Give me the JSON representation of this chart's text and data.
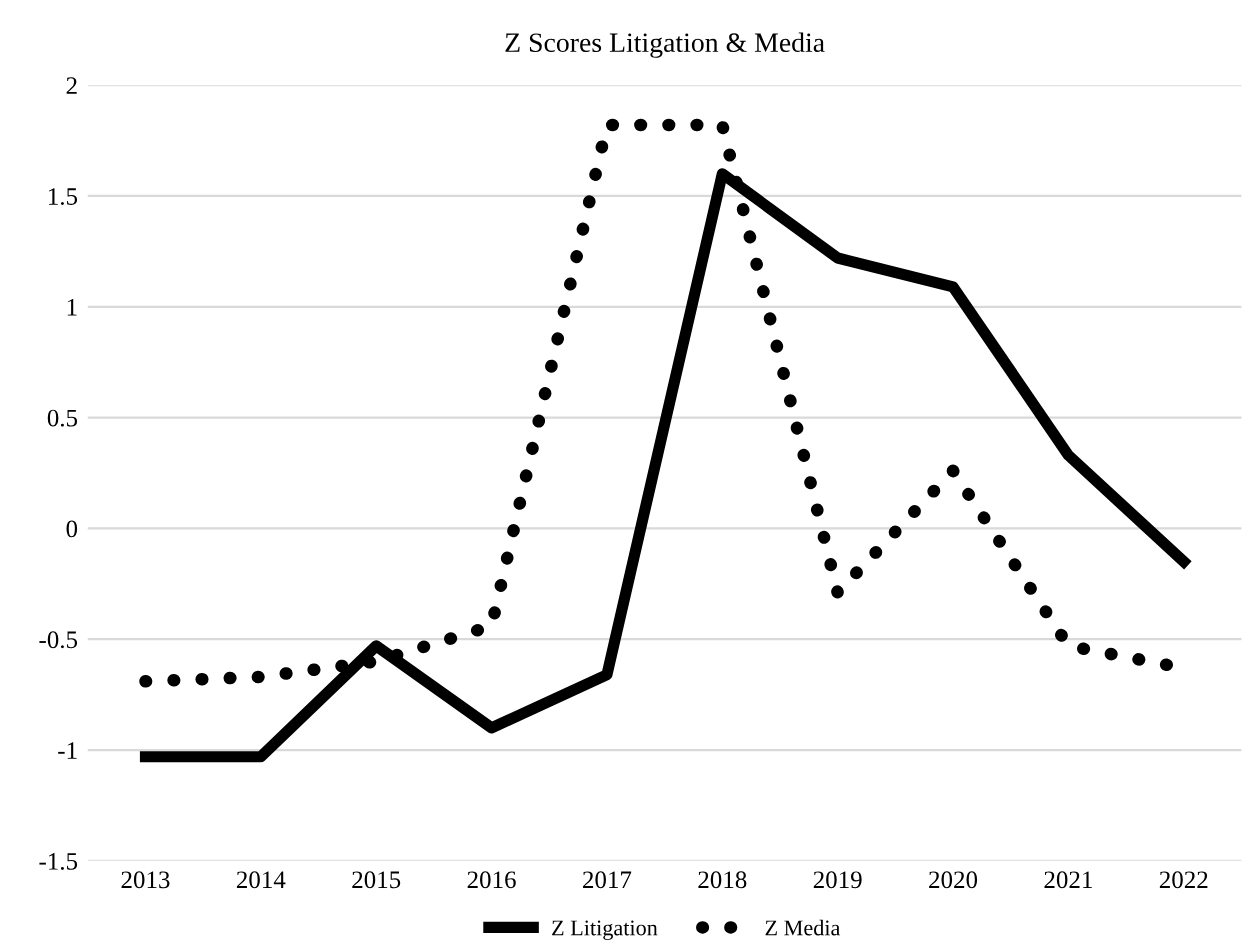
{
  "chart_data": {
    "type": "line",
    "title": "Z Scores Litigation & Media",
    "categories": [
      "2013",
      "2014",
      "2015",
      "2016",
      "2017",
      "2018",
      "2019",
      "2020",
      "2021",
      "2022"
    ],
    "series": [
      {
        "name": "Z Litigation",
        "color": "#000000",
        "line_style": "solid",
        "values": [
          -1.03,
          -1.03,
          -0.53,
          -0.9,
          -0.66,
          1.6,
          1.22,
          1.09,
          0.33,
          -0.15
        ]
      },
      {
        "name": "Z Media",
        "color": "#000000",
        "line_style": "dotted",
        "values": [
          -0.69,
          -0.67,
          -0.6,
          -0.44,
          1.82,
          1.82,
          -0.29,
          0.26,
          -0.53,
          -0.63
        ]
      }
    ],
    "ylim": [
      -1.5,
      2
    ],
    "yticks": [
      -1.5,
      -1,
      -0.5,
      0,
      0.5,
      1,
      1.5,
      2
    ],
    "grid": "y",
    "legend": "bottom",
    "marker": "none"
  }
}
